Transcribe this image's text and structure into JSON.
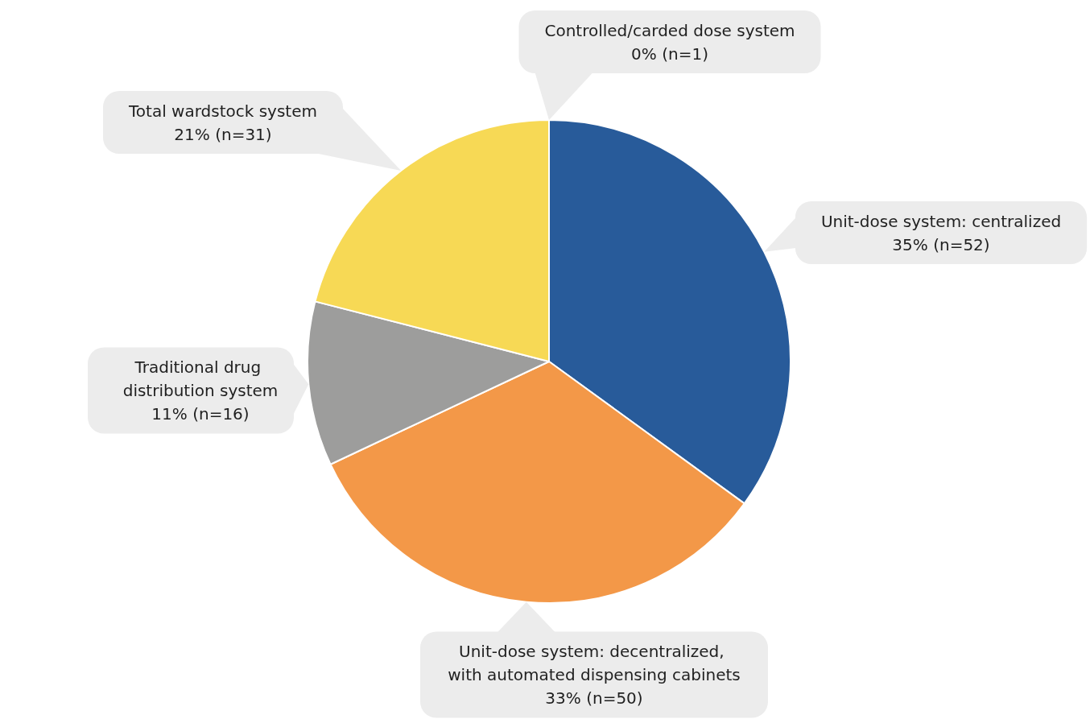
{
  "chart_data": {
    "type": "pie",
    "categories": [
      "Unit-dose system: centralized",
      "Unit-dose system: decentralized, with automated dispensing cabinets",
      "Traditional drug distribution system",
      "Total wardstock system",
      "Controlled/carded dose system"
    ],
    "values": [
      35,
      33,
      11,
      21,
      0
    ],
    "value_labels": [
      "35% (n=52)",
      "33% (n=50)",
      "11% (n=16)",
      "21% (n=31)",
      "0% (n=1)"
    ],
    "colors": [
      "#285b9a",
      "#f39848",
      "#9d9d9c",
      "#f7d955",
      null
    ],
    "legend": false
  }
}
